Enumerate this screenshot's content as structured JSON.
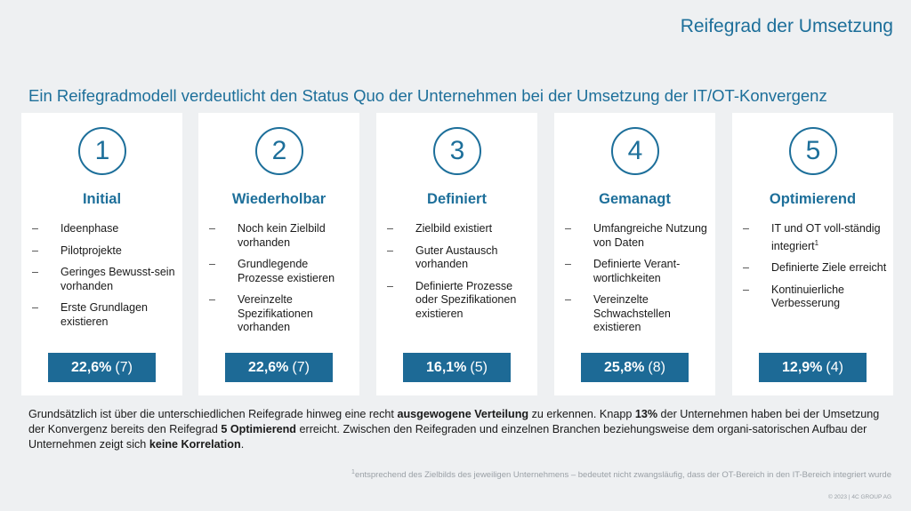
{
  "header": {
    "title": "Reifegrad der Umsetzung"
  },
  "subtitle": "Ein Reifegradmodell verdeutlicht den Status Quo der Unternehmen bei der Umsetzung der IT/OT-Konvergenz",
  "levels": [
    {
      "number": "1",
      "title": "Initial",
      "items": [
        "Ideenphase",
        "Pilotprojekte",
        "Geringes Bewusst-sein vorhanden",
        "Erste Grundlagen existieren"
      ],
      "percent": "22,6%",
      "count": "(7)"
    },
    {
      "number": "2",
      "title": "Wiederholbar",
      "items": [
        "Noch kein Zielbild vorhanden",
        "Grundlegende Prozesse existieren",
        "Vereinzelte Spezifikationen vorhanden"
      ],
      "percent": "22,6%",
      "count": "(7)"
    },
    {
      "number": "3",
      "title": "Definiert",
      "items": [
        "Zielbild existiert",
        "Guter Austausch vorhanden",
        "Definierte Prozesse oder Spezifikationen existieren"
      ],
      "percent": "16,1%",
      "count": "(5)"
    },
    {
      "number": "4",
      "title": "Gemanagt",
      "items": [
        "Umfangreiche Nutzung von Daten",
        "Definierte Verant-wortlichkeiten",
        "Vereinzelte Schwachstellen existieren"
      ],
      "percent": "25,8%",
      "count": "(8)"
    },
    {
      "number": "5",
      "title": "Optimierend",
      "items": [
        "IT und OT voll-ständig integriert",
        "Definierte Ziele erreicht",
        "Kontinuierliche Verbesserung"
      ],
      "footnote_marker": "1",
      "percent": "12,9%",
      "count": "(4)"
    }
  ],
  "summary": {
    "t1": "Grundsätzlich ist über die unterschiedlichen Reifegrade hinweg eine recht ",
    "b1": "ausgewogene Verteilung",
    "t2": " zu erkennen. Knapp ",
    "b2": "13%",
    "t3": " der Unternehmen haben bei der Umsetzung der Konvergenz bereits den Reifegrad ",
    "b3": "5 Optimierend",
    "t4": " erreicht. Zwischen den Reifegraden und einzelnen Branchen beziehungsweise dem organi-satorischen Aufbau der Unternehmen zeigt sich ",
    "b4": "keine Korrelation",
    "t5": "."
  },
  "footnote": {
    "marker": "1",
    "text": "entsprechend des Zielbilds des jeweiligen Unternehmens – bedeutet nicht zwangsläufig, dass der OT-Bereich in den IT-Bereich integriert wurde"
  },
  "copyright": "© 2023 | 4C GROUP AG",
  "colors": {
    "accent": "#1d6f9a",
    "badge": "#1d6a96",
    "background": "#eef0f2",
    "card": "#ffffff"
  }
}
